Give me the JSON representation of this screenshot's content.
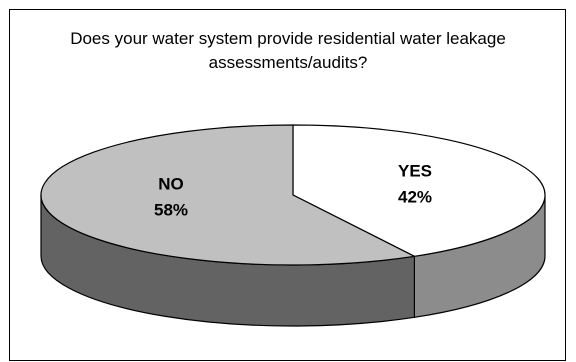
{
  "chart_data": {
    "type": "pie",
    "title": "Does your water system provide residential water leakage assessments/audits?",
    "slices": [
      {
        "label": "YES",
        "value": 42,
        "value_label": "42%",
        "color": "#ffffff",
        "side_color": "#8c8c8c"
      },
      {
        "label": "NO",
        "value": 58,
        "value_label": "58%",
        "color": "#c0c0c0",
        "side_color": "#636363"
      }
    ],
    "style": "3d",
    "legend": "none"
  }
}
